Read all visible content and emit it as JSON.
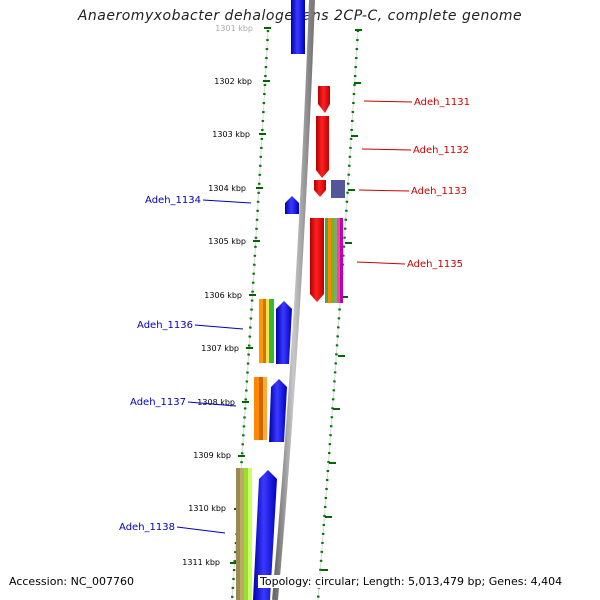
{
  "title": "Anaeromyxobacter dehalogenans 2CP-C, complete genome",
  "accession": "Accession: NC_007760",
  "stats": "Topology: circular; Length: 5,013,479 bp; Genes: 4,404",
  "colors": {
    "forward_gene": "#ee0000",
    "reverse_gene": "#0000ee",
    "forward_label": "#cc0000",
    "reverse_label": "#0000bb",
    "tick": "#006600",
    "backbone": "#999999"
  },
  "ticks": [
    "1301 kbp",
    "1302 kbp",
    "1303 kbp",
    "1304 kbp",
    "1305 kbp",
    "1306 kbp",
    "1307 kbp",
    "1308 kbp",
    "1309 kbp",
    "1310 kbp",
    "1311 kbp"
  ],
  "genes_forward": [
    "Adeh_1131",
    "Adeh_1132",
    "Adeh_1133",
    "Adeh_1135"
  ],
  "genes_reverse": [
    "Adeh_1134",
    "Adeh_1136",
    "Adeh_1137",
    "Adeh_1138"
  ]
}
